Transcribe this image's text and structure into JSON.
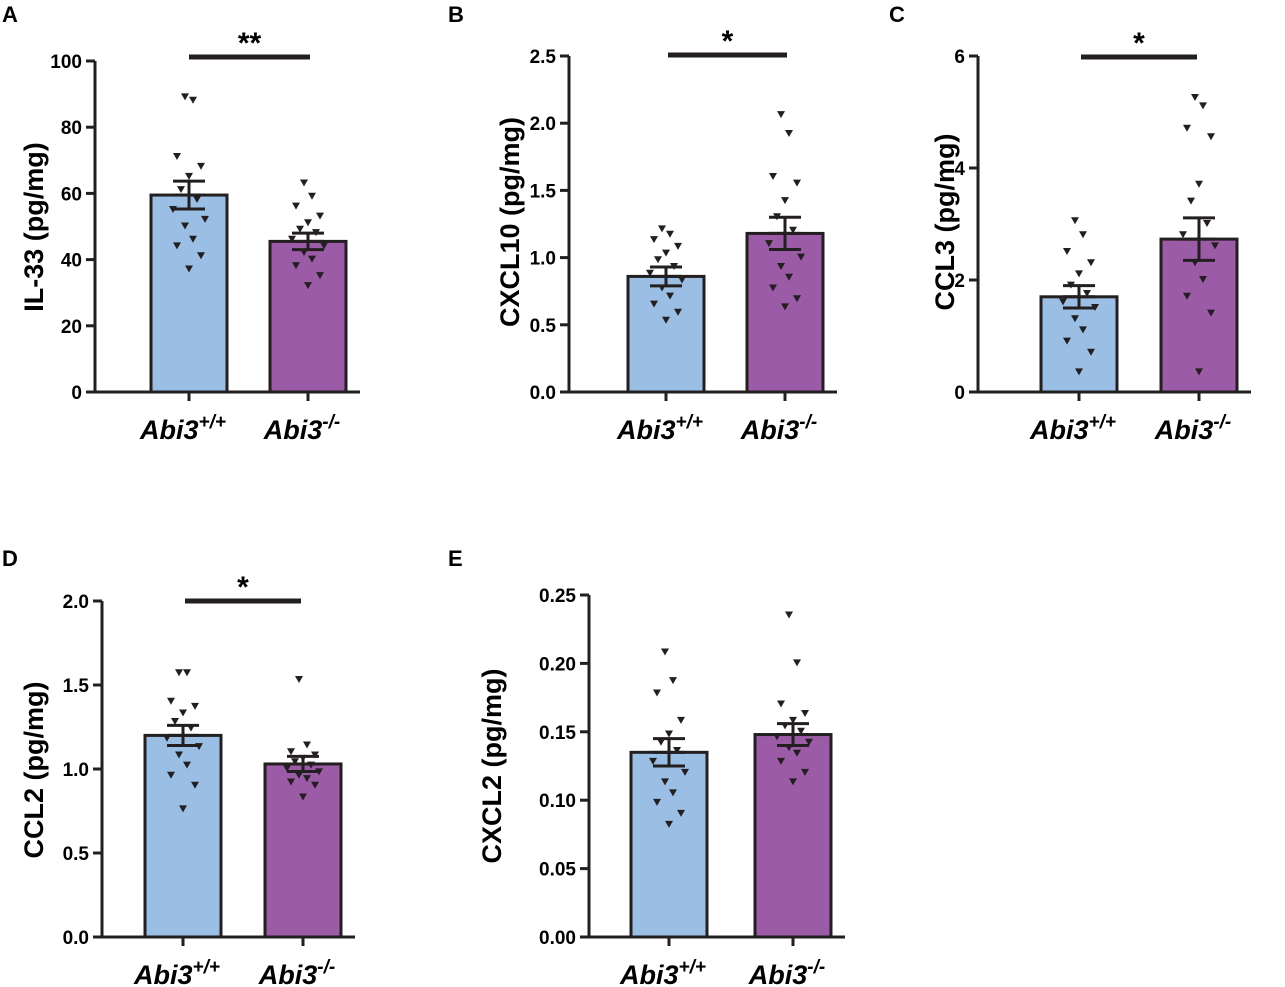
{
  "colors": {
    "wildtype_fill": "#9bbfe4",
    "knockout_fill": "#9b5ba6",
    "outline": "#231f20",
    "points": "#231f20"
  },
  "chart_data": [
    {
      "type": "bar",
      "panel": "A",
      "ylabel": "IL-33 (pg/mg)",
      "ylim": [
        0,
        100
      ],
      "yticks": [
        "0",
        "20",
        "40",
        "60",
        "80",
        "100"
      ],
      "categories": [
        {
          "base": "Abi3",
          "sup": "+/+"
        },
        {
          "base": "Abi3",
          "sup": "-/-"
        }
      ],
      "series": [
        {
          "name": "Abi3+/+",
          "mean": 59.5,
          "sem": 4.2,
          "points": [
            89,
            88,
            71,
            68,
            65,
            61,
            58,
            55,
            52,
            50,
            46,
            44,
            41,
            37
          ]
        },
        {
          "name": "Abi3-/-",
          "mean": 45.5,
          "sem": 2.5,
          "points": [
            63,
            59,
            56,
            53,
            51,
            49,
            48,
            46,
            44,
            42,
            40,
            38,
            35,
            32
          ]
        }
      ],
      "significance": "**"
    },
    {
      "type": "bar",
      "panel": "B",
      "ylabel": "CXCL10 (pg/mg)",
      "ylim": [
        0,
        2.5
      ],
      "yticks": [
        "0.0",
        "0.5",
        "1.0",
        "1.5",
        "2.0",
        "2.5"
      ],
      "categories": [
        {
          "base": "Abi3",
          "sup": "+/+"
        },
        {
          "base": "Abi3",
          "sup": "-/-"
        }
      ],
      "series": [
        {
          "name": "Abi3+/+",
          "mean": 0.86,
          "sem": 0.07,
          "points": [
            1.21,
            1.17,
            1.13,
            1.08,
            1.03,
            0.98,
            0.93,
            0.88,
            0.83,
            0.77,
            0.71,
            0.65,
            0.59,
            0.53
          ]
        },
        {
          "name": "Abi3-/-",
          "mean": 1.18,
          "sem": 0.12,
          "points": [
            2.06,
            1.92,
            1.6,
            1.55,
            1.42,
            1.3,
            1.2,
            1.1,
            1.0,
            0.93,
            0.85,
            0.77,
            0.69,
            0.63
          ]
        }
      ],
      "significance": "*"
    },
    {
      "type": "bar",
      "panel": "C",
      "ylabel": "CCL3 (pg/mg)",
      "ylim": [
        0,
        6
      ],
      "yticks": [
        "0",
        "2",
        "4",
        "6"
      ],
      "categories": [
        {
          "base": "Abi3",
          "sup": "+/+"
        },
        {
          "base": "Abi3",
          "sup": "-/-"
        }
      ],
      "series": [
        {
          "name": "Abi3+/+",
          "mean": 1.7,
          "sem": 0.2,
          "points": [
            3.05,
            2.8,
            2.5,
            2.3,
            2.1,
            1.9,
            1.75,
            1.6,
            1.5,
            1.3,
            1.1,
            0.9,
            0.7,
            0.35
          ]
        },
        {
          "name": "Abi3-/-",
          "mean": 2.73,
          "sem": 0.38,
          "points": [
            5.25,
            5.1,
            4.7,
            4.55,
            3.7,
            3.4,
            3.0,
            2.8,
            2.6,
            2.3,
            2.0,
            1.7,
            1.4,
            0.35
          ]
        }
      ],
      "significance": "*"
    },
    {
      "type": "bar",
      "panel": "D",
      "ylabel": "CCL2 (pg/mg)",
      "ylim": [
        0,
        2.0
      ],
      "yticks": [
        "0.0",
        "0.5",
        "1.0",
        "1.5",
        "2.0"
      ],
      "categories": [
        {
          "base": "Abi3",
          "sup": "+/+"
        },
        {
          "base": "Abi3",
          "sup": "-/-"
        }
      ],
      "series": [
        {
          "name": "Abi3+/+",
          "mean": 1.2,
          "sem": 0.06,
          "points": [
            1.57,
            1.57,
            1.4,
            1.37,
            1.33,
            1.28,
            1.24,
            1.18,
            1.13,
            1.08,
            1.02,
            0.96,
            0.9,
            0.76
          ]
        },
        {
          "name": "Abi3-/-",
          "mean": 1.03,
          "sem": 0.045,
          "points": [
            1.53,
            1.14,
            1.1,
            1.08,
            1.06,
            1.04,
            1.02,
            1.0,
            0.98,
            0.96,
            0.94,
            0.92,
            0.9,
            0.83
          ]
        }
      ],
      "significance": "*"
    },
    {
      "type": "bar",
      "panel": "E",
      "ylabel": "CXCL2 (pg/mg)",
      "ylim": [
        0,
        0.25
      ],
      "yticks": [
        "0.00",
        "0.05",
        "0.10",
        "0.15",
        "0.20",
        "0.25"
      ],
      "categories": [
        {
          "base": "Abi3",
          "sup": "+/+"
        },
        {
          "base": "Abi3",
          "sup": "-/-"
        }
      ],
      "series": [
        {
          "name": "Abi3+/+",
          "mean": 0.135,
          "sem": 0.01,
          "points": [
            0.208,
            0.187,
            0.178,
            0.158,
            0.148,
            0.142,
            0.136,
            0.128,
            0.12,
            0.113,
            0.105,
            0.098,
            0.09,
            0.082
          ]
        },
        {
          "name": "Abi3-/-",
          "mean": 0.148,
          "sem": 0.008,
          "points": [
            0.235,
            0.2,
            0.17,
            0.163,
            0.158,
            0.154,
            0.15,
            0.146,
            0.142,
            0.138,
            0.134,
            0.128,
            0.12,
            0.113
          ]
        }
      ],
      "significance": ""
    }
  ]
}
